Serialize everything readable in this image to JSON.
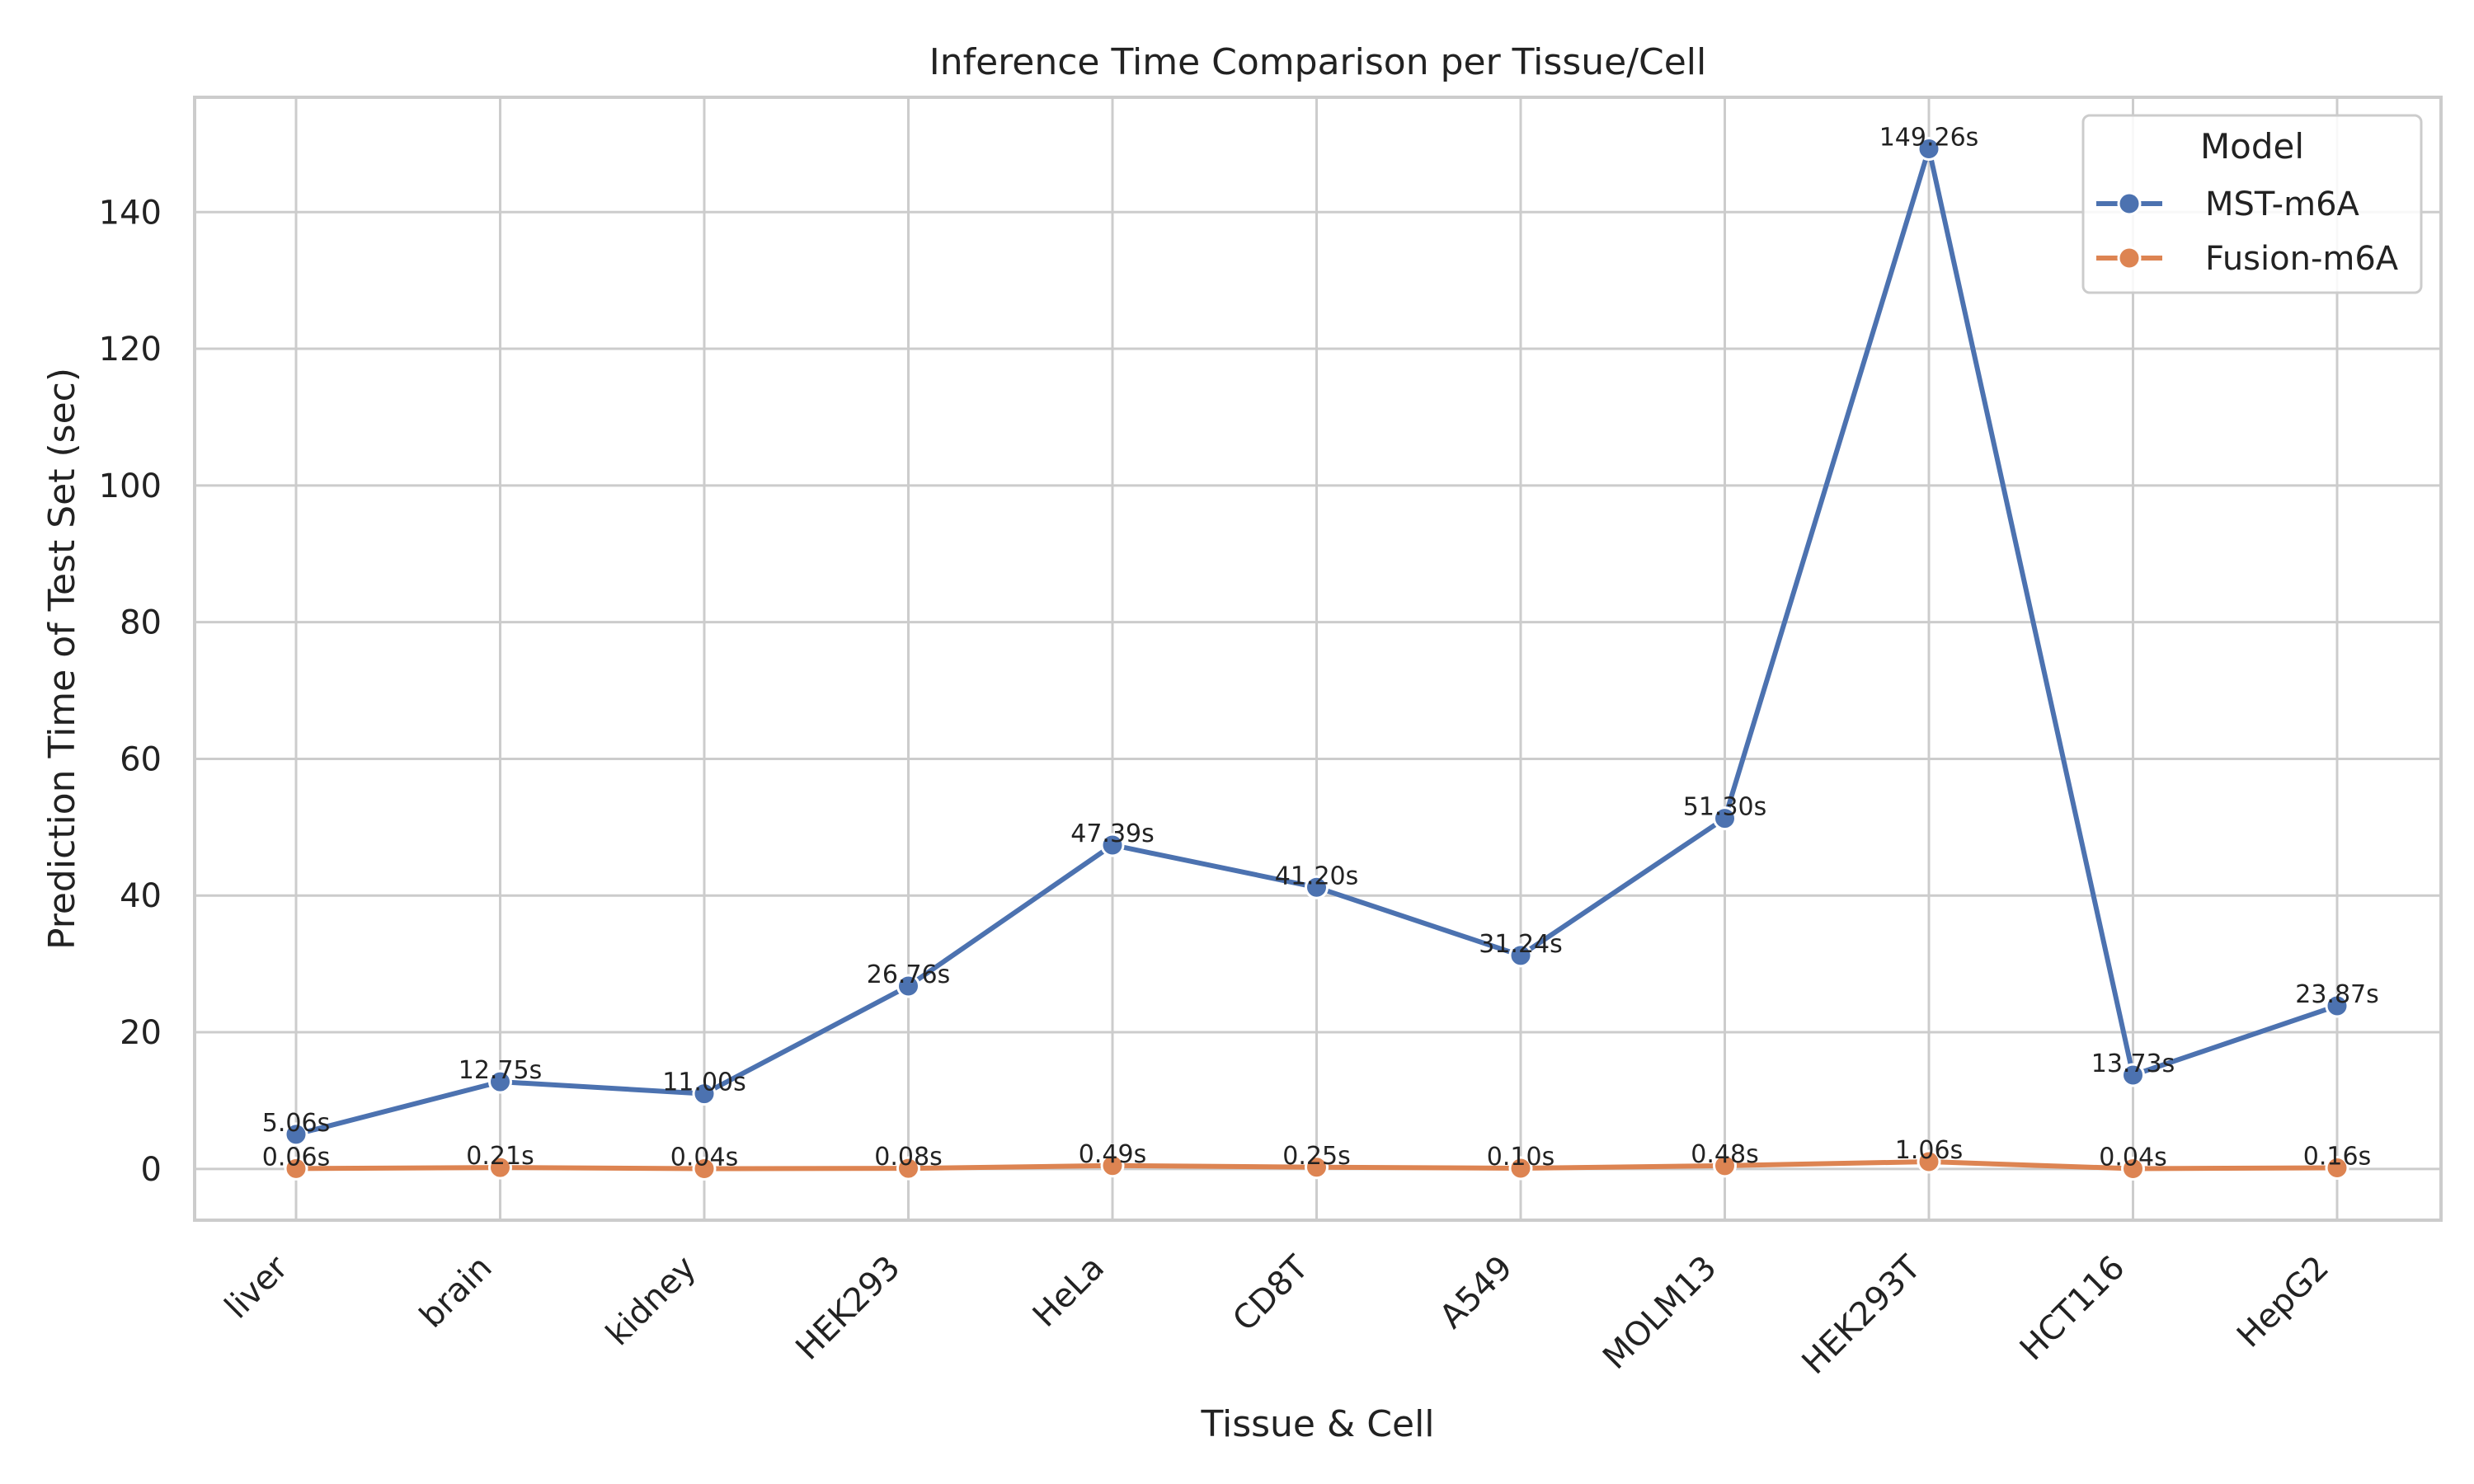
{
  "chart_data": {
    "type": "line",
    "title": "Inference Time Comparison per Tissue/Cell",
    "xlabel": "Tissue & Cell",
    "ylabel": "Prediction Time of Test Set  (sec)",
    "categories": [
      "liver",
      "brain",
      "kidney",
      "HEK293",
      "HeLa",
      "CD8T",
      "A549",
      "MOLM13",
      "HEK293T",
      "HCT116",
      "HepG2"
    ],
    "ylim": [
      -7.5,
      156.8
    ],
    "yticks": [
      0,
      20,
      40,
      60,
      80,
      100,
      120,
      140
    ],
    "grid": true,
    "legend": {
      "title": "Model",
      "placement": "top-right"
    },
    "series": [
      {
        "name": "MST-m6A",
        "color": "#4c72b0",
        "values": [
          5.06,
          12.75,
          11.0,
          26.76,
          47.39,
          41.2,
          31.24,
          51.3,
          149.26,
          13.73,
          23.87
        ],
        "labels": [
          "5.06s",
          "12.75s",
          "11.00s",
          "26.76s",
          "47.39s",
          "41.20s",
          "31.24s",
          "51.30s",
          "149.26s",
          "13.73s",
          "23.87s"
        ]
      },
      {
        "name": "Fusion-m6A",
        "color": "#dd8452",
        "values": [
          0.06,
          0.21,
          0.04,
          0.08,
          0.49,
          0.25,
          0.1,
          0.48,
          1.06,
          0.04,
          0.16
        ],
        "labels": [
          "0.06s",
          "0.21s",
          "0.04s",
          "0.08s",
          "0.49s",
          "0.25s",
          "0.10s",
          "0.48s",
          "1.06s",
          "0.04s",
          "0.16s"
        ]
      }
    ]
  }
}
